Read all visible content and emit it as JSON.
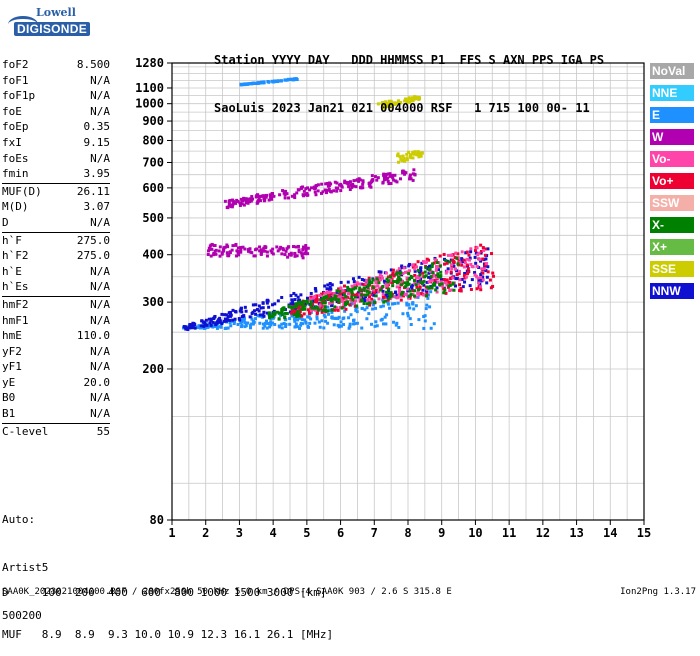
{
  "logo": {
    "top": "Lowell",
    "bottom": "DIGISONDE"
  },
  "header": {
    "line1": "Station YYYY DAY   DDD HHMMSS P1  FFS S AXN PPS IGA PS",
    "line2": "SaoLuis 2023 Jan21 021 004000 RSF   1 715 100 00- 11"
  },
  "params": [
    {
      "label": "foF2",
      "value": "8.500"
    },
    {
      "label": "foF1",
      "value": "N/A"
    },
    {
      "label": "foF1p",
      "value": "N/A"
    },
    {
      "label": "foE",
      "value": "N/A"
    },
    {
      "label": "foEp",
      "value": "0.35"
    },
    {
      "label": "fxI",
      "value": "9.15"
    },
    {
      "label": "foEs",
      "value": "N/A"
    },
    {
      "label": "fmin",
      "value": "3.95"
    },
    {
      "label": "MUF(D)",
      "value": "26.11",
      "sep": true
    },
    {
      "label": "M(D)",
      "value": "3.07"
    },
    {
      "label": "D",
      "value": "N/A"
    },
    {
      "label": "h`F",
      "value": "275.0",
      "sep": true
    },
    {
      "label": "h`F2",
      "value": "275.0"
    },
    {
      "label": "h`E",
      "value": "N/A"
    },
    {
      "label": "h`Es",
      "value": "N/A"
    },
    {
      "label": "hmF2",
      "value": "N/A",
      "sep": true
    },
    {
      "label": "hmF1",
      "value": "N/A"
    },
    {
      "label": "hmE",
      "value": "110.0"
    },
    {
      "label": "yF2",
      "value": "N/A"
    },
    {
      "label": "yF1",
      "value": "N/A"
    },
    {
      "label": "yE",
      "value": "20.0"
    },
    {
      "label": "B0",
      "value": "N/A"
    },
    {
      "label": "B1",
      "value": "N/A"
    },
    {
      "label": "C-level",
      "value": "55",
      "sep": true
    }
  ],
  "auto": {
    "line1": "Auto:",
    "line2": "Artist5",
    "line3": "500200"
  },
  "legend": [
    {
      "label": "NoVal",
      "color": "#a8a8a8"
    },
    {
      "label": "NNE",
      "color": "#33ccff"
    },
    {
      "label": "E",
      "color": "#1e90ff"
    },
    {
      "label": "W",
      "color": "#b000b0"
    },
    {
      "label": "Vo-",
      "color": "#ff44aa"
    },
    {
      "label": "Vo+",
      "color": "#ee0033"
    },
    {
      "label": "SSW",
      "color": "#f4b0a8"
    },
    {
      "label": "X-",
      "color": "#008000"
    },
    {
      "label": "X+",
      "color": "#66bb44"
    },
    {
      "label": "SSE",
      "color": "#cccc00"
    },
    {
      "label": "NNW",
      "color": "#1010d0"
    }
  ],
  "footer": {
    "d_line": "D     100  200  400  600  800 1000 1500 3000 [km]",
    "muf_line": "MUF   8.9  8.9  9.3 10.0 10.9 12.3 16.1 26.1 [MHz]",
    "file_line": "SAA0K_2023021004000.RSF / 280fx256h 50 kHz 5.0 km / DPS-4 SAA0K 903 / 2.6 S 315.8 E",
    "version": "Ion2Png 1.3.17"
  },
  "chart_data": {
    "type": "scatter",
    "xlim": [
      1,
      15
    ],
    "ylim": [
      80,
      1280
    ],
    "y_scale": "log",
    "grid": true,
    "x_ticks": [
      "1",
      "2",
      "3",
      "4",
      "5",
      "6",
      "7",
      "8",
      "9",
      "10",
      "11",
      "12",
      "13",
      "14",
      "15"
    ],
    "y_ticks": [
      80,
      200,
      300,
      400,
      500,
      600,
      700,
      800,
      900,
      1000,
      1100,
      1280
    ],
    "traces": [
      {
        "name": "E",
        "x": [
          1.3,
          8.8
        ],
        "ylo": [
          258,
          258
        ],
        "yhi": [
          260,
          325
        ]
      },
      {
        "name": "NNW",
        "x": [
          1.3,
          10.4
        ],
        "ylo": [
          255,
          340
        ],
        "yhi": [
          262,
          425
        ]
      },
      {
        "name": "Vo+",
        "x": [
          4.5,
          10.5
        ],
        "ylo": [
          275,
          330
        ],
        "yhi": [
          300,
          440
        ]
      },
      {
        "name": "Vo-",
        "x": [
          5.0,
          10.3
        ],
        "ylo": [
          285,
          330
        ],
        "yhi": [
          310,
          430
        ]
      },
      {
        "name": "X-",
        "x": [
          3.8,
          9.5
        ],
        "ylo": [
          270,
          320
        ],
        "yhi": [
          285,
          400
        ]
      },
      {
        "name": "W",
        "x": [
          2.0,
          5.0
        ],
        "ylo": [
          400,
          395
        ],
        "yhi": [
          430,
          430
        ]
      },
      {
        "name": "W",
        "x": [
          2.5,
          8.2
        ],
        "ylo": [
          535,
          630
        ],
        "yhi": [
          560,
          680
        ]
      },
      {
        "name": "SSE",
        "x": [
          7.6,
          8.4
        ],
        "ylo": [
          700,
          735
        ],
        "yhi": [
          745,
          760
        ]
      },
      {
        "name": "SSE",
        "x": [
          7.0,
          8.3
        ],
        "ylo": [
          970,
          1030
        ],
        "yhi": [
          1010,
          1060
        ]
      },
      {
        "name": "E",
        "x": [
          3.0,
          4.8
        ],
        "ylo": [
          1130,
          1170
        ],
        "yhi": [
          1135,
          1180
        ]
      }
    ]
  }
}
